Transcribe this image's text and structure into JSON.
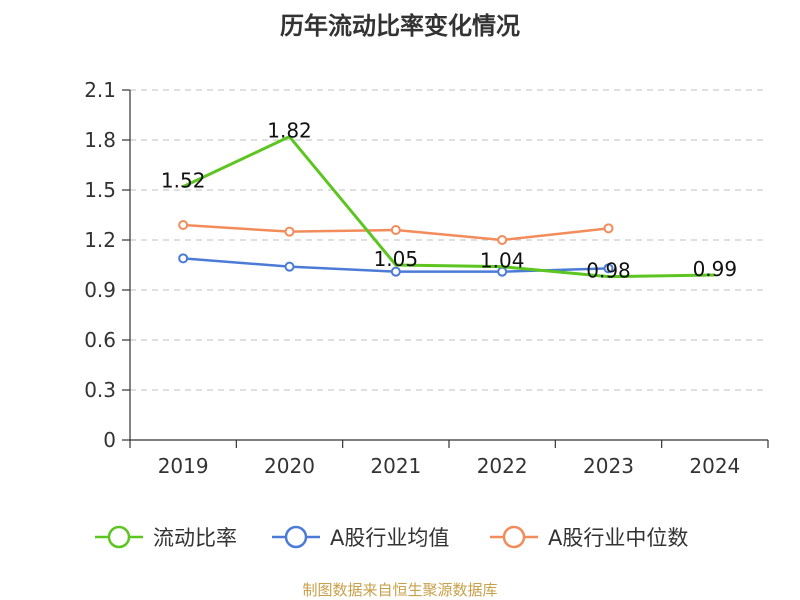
{
  "chart_data": {
    "type": "line",
    "title": "历年流动比率变化情况",
    "categories": [
      "2019",
      "2020",
      "2021",
      "2022",
      "2023",
      "2024"
    ],
    "yticks": [
      "0",
      "0.3",
      "0.6",
      "0.9",
      "1.2",
      "1.5",
      "1.8",
      "2.1"
    ],
    "ylim": [
      0,
      2.1
    ],
    "grid": true,
    "legend_position": "bottom",
    "series": [
      {
        "name": "流动比率",
        "color": "#5cc520",
        "values": [
          1.52,
          1.82,
          1.05,
          1.04,
          0.98,
          0.99
        ],
        "labels": [
          "1.52",
          "1.82",
          "1.05",
          "1.04",
          "0.98",
          "0.99"
        ],
        "markers": false,
        "width": 3
      },
      {
        "name": "A股行业均值",
        "color": "#4b7bd6",
        "values": [
          1.09,
          1.04,
          1.01,
          1.01,
          1.03,
          null
        ],
        "markers": true,
        "width": 2.5
      },
      {
        "name": "A股行业中位数",
        "color": "#f28c5b",
        "values": [
          1.29,
          1.25,
          1.26,
          1.2,
          1.27,
          null
        ],
        "markers": true,
        "width": 2.5
      }
    ],
    "source": "制图数据来自恒生聚源数据库"
  }
}
